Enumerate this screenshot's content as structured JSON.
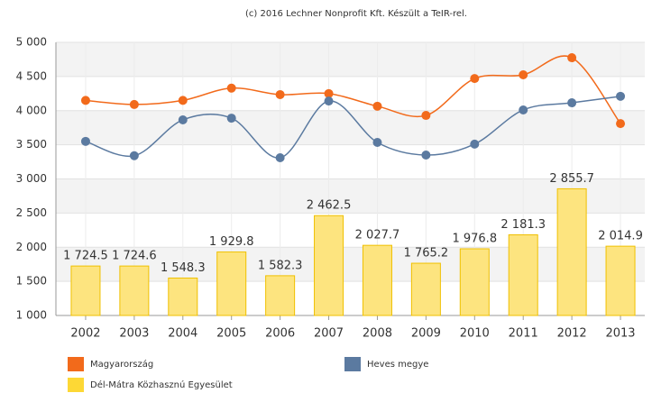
{
  "chart_data": {
    "type": "bar-line",
    "title": "(c) 2016 Lechner Nonprofit Kft. Készült a TeIR-rel.",
    "categories": [
      "2002",
      "2003",
      "2004",
      "2005",
      "2006",
      "2007",
      "2008",
      "2009",
      "2010",
      "2011",
      "2012",
      "2013"
    ],
    "series": [
      {
        "name": "Magyarország",
        "color": "#f26a1b",
        "kind": "line",
        "values": [
          4150,
          4090,
          4150,
          4330,
          4235,
          4250,
          4065,
          3930,
          4470,
          4525,
          4775,
          3810
        ]
      },
      {
        "name": "Heves megye",
        "color": "#5b7aa0",
        "kind": "line",
        "values": [
          3550,
          3340,
          3865,
          3890,
          3310,
          4140,
          3535,
          3350,
          3510,
          4010,
          4115,
          4210
        ]
      },
      {
        "name": "Dél-Mátra Közhasznú Egyesület",
        "color": "#fde47f",
        "kind": "bar",
        "values": [
          1724.5,
          1724.6,
          1548.3,
          1929.8,
          1582.3,
          2462.5,
          2027.7,
          1765.2,
          1976.8,
          2181.3,
          2855.7,
          2014.9
        ],
        "value_labels": [
          "1 724.5",
          "1 724.6",
          "1 548.3",
          "1 929.8",
          "1 582.3",
          "2 462.5",
          "2 027.7",
          "1 765.2",
          "1 976.8",
          "2 181.3",
          "2 855.7",
          "2 014.9"
        ]
      }
    ],
    "ylim": [
      1000,
      5000
    ],
    "yticks": [
      {
        "value": 1000,
        "label": "1 000"
      },
      {
        "value": 1500,
        "label": "1 500"
      },
      {
        "value": 2000,
        "label": "2 000"
      },
      {
        "value": 2500,
        "label": "2 500"
      },
      {
        "value": 3000,
        "label": "3 000"
      },
      {
        "value": 3500,
        "label": "3 500"
      },
      {
        "value": 4000,
        "label": "4 000"
      },
      {
        "value": 4500,
        "label": "4 500"
      },
      {
        "value": 5000,
        "label": "5 000"
      }
    ],
    "grid": true
  }
}
